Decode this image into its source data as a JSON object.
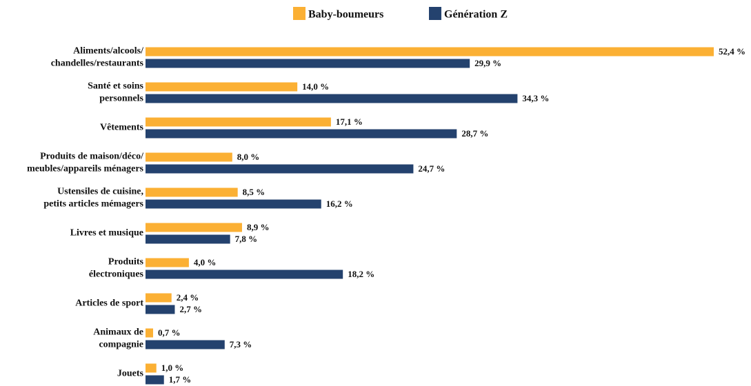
{
  "chart_data": {
    "type": "hbar",
    "categories": [
      "Aliments/alcools/\nchandelles/restaurants",
      "Santé et soins\npersonnels",
      "Vêtements",
      "Produits de maison/déco/\nmeubles/appareils ménagers",
      "Ustensiles de cuisine,\npetits articles mémagers",
      "Livres et musique",
      "Produits\nélectroniques",
      "Articles de sport",
      "Animaux de\ncompagnie",
      "Jouets"
    ],
    "series": [
      {
        "name": "Baby-boumeurs",
        "color": "#fbb034",
        "values": [
          52.4,
          14.0,
          17.1,
          8.0,
          8.5,
          8.9,
          4.0,
          2.4,
          0.7,
          1.0
        ],
        "value_labels": [
          "52,4 %",
          "14,0 %",
          "17,1 %",
          "8,0 %",
          "8,5 %",
          "8,9 %",
          "4,0 %",
          "2,4 %",
          "0,7 %",
          "1,0 %"
        ]
      },
      {
        "name": "Génération Z",
        "color": "#24426e",
        "values": [
          29.9,
          34.3,
          28.7,
          24.7,
          16.2,
          7.8,
          18.2,
          2.7,
          7.3,
          1.7
        ],
        "value_labels": [
          "29,9 %",
          "34,3 %",
          "28,7 %",
          "24,7 %",
          "16,2 %",
          "7,8 %",
          "18,2 %",
          "2,7 %",
          "7,3 %",
          "1,7 %"
        ]
      }
    ],
    "legend": "top"
  }
}
